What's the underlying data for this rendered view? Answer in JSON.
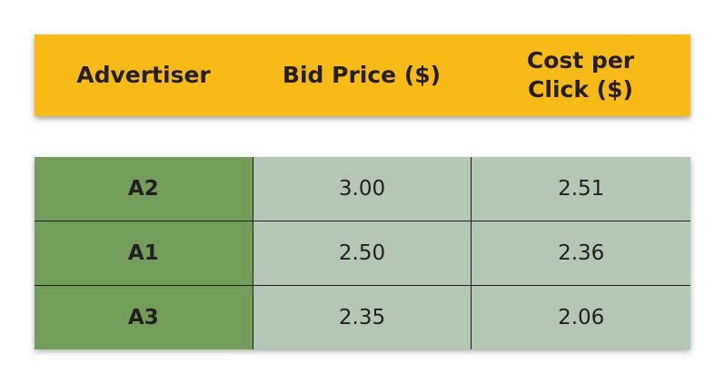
{
  "header": {
    "columns": [
      "Advertiser",
      "Bid Price ($)",
      "Cost per\nClick ($)"
    ]
  },
  "rows": [
    {
      "advertiser": "A2",
      "bid_price": "3.00",
      "cost_per_click": "2.51"
    },
    {
      "advertiser": "A1",
      "bid_price": "2.50",
      "cost_per_click": "2.36"
    },
    {
      "advertiser": "A3",
      "bid_price": "2.35",
      "cost_per_click": "2.06"
    }
  ],
  "colors": {
    "header_bg": "#f8bb15",
    "name_col_bg": "#729e5a",
    "value_col_bg": "#b4c7b4"
  }
}
